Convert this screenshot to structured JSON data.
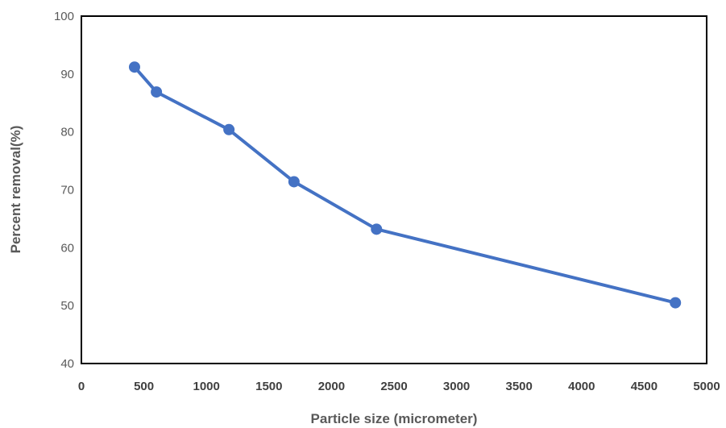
{
  "chart_data": {
    "type": "line",
    "title": "",
    "xlabel": "Particle size (micrometer)",
    "ylabel": "Percent removal(%)",
    "xlim": [
      0,
      5000
    ],
    "ylim": [
      40,
      100
    ],
    "x_ticks": [
      0,
      500,
      1000,
      1500,
      2000,
      2500,
      3000,
      3500,
      4000,
      4500,
      5000
    ],
    "y_ticks": [
      40,
      50,
      60,
      70,
      80,
      90,
      100
    ],
    "grid": false,
    "legend": "none",
    "series": [
      {
        "x": [
          425,
          600,
          1180,
          1700,
          2360,
          4750
        ],
        "y": [
          91.2,
          86.9,
          80.4,
          71.4,
          63.2,
          50.5
        ],
        "color": "#4472C4",
        "marker": "circle"
      }
    ]
  }
}
